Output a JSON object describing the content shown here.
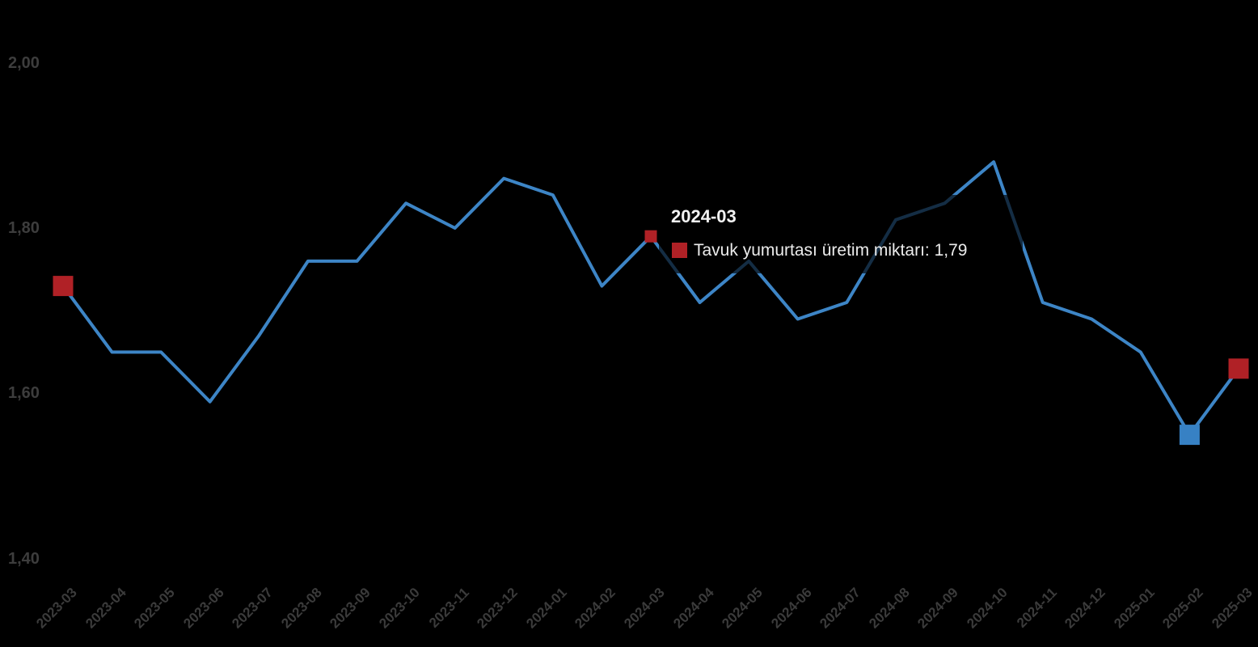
{
  "chart_data": {
    "type": "line",
    "title": "",
    "xlabel": "",
    "ylabel": "",
    "grid": false,
    "legend_position": "none",
    "x": [
      "2023-03",
      "2023-04",
      "2023-05",
      "2023-06",
      "2023-07",
      "2023-08",
      "2023-09",
      "2023-10",
      "2023-11",
      "2023-12",
      "2024-01",
      "2024-02",
      "2024-03",
      "2024-04",
      "2024-05",
      "2024-06",
      "2024-07",
      "2024-08",
      "2024-09",
      "2024-10",
      "2024-11",
      "2024-12",
      "2025-01",
      "2025-02",
      "2025-03"
    ],
    "series": [
      {
        "name": "Tavuk yumurtası üretim miktarı",
        "values": [
          1.73,
          1.65,
          1.65,
          1.59,
          1.67,
          1.76,
          1.76,
          1.83,
          1.8,
          1.86,
          1.84,
          1.73,
          1.79,
          1.71,
          1.76,
          1.69,
          1.71,
          1.81,
          1.83,
          1.88,
          1.71,
          1.69,
          1.65,
          1.55,
          1.63
        ]
      }
    ],
    "ylim": [
      1.4,
      2.0
    ],
    "ytick_labels": [
      "2,00",
      "1,80",
      "1,60",
      "1,40"
    ],
    "ytick_values": [
      2.0,
      1.8,
      1.6,
      1.4
    ],
    "line_color": "#3D85C6",
    "highlight_markers": [
      {
        "x": "2023-03",
        "color": "#B02126",
        "size": 25
      },
      {
        "x": "2024-03",
        "color": "#B02126",
        "size": 15
      },
      {
        "x": "2025-02",
        "color": "#3781C4",
        "size": 25
      },
      {
        "x": "2025-03",
        "color": "#B02126",
        "size": 25
      }
    ]
  },
  "tooltip": {
    "title": "2024-03",
    "text": "Tavuk yumurtası üretim miktarı: 1,79",
    "swatch_color": "#B02126"
  },
  "colors": {
    "background": "#000000",
    "axis_label": "#3d3d3d"
  }
}
